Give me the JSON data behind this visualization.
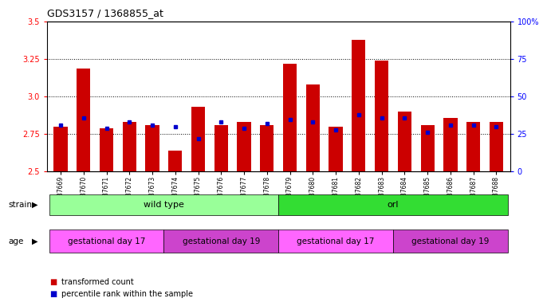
{
  "title": "GDS3157 / 1368855_at",
  "samples": [
    "GSM187669",
    "GSM187670",
    "GSM187671",
    "GSM187672",
    "GSM187673",
    "GSM187674",
    "GSM187675",
    "GSM187676",
    "GSM187677",
    "GSM187678",
    "GSM187679",
    "GSM187680",
    "GSM187681",
    "GSM187682",
    "GSM187683",
    "GSM187684",
    "GSM187685",
    "GSM187686",
    "GSM187687",
    "GSM187688"
  ],
  "transformed_count": [
    2.8,
    3.19,
    2.79,
    2.83,
    2.81,
    2.64,
    2.93,
    2.81,
    2.83,
    2.81,
    3.22,
    3.08,
    2.8,
    3.38,
    3.24,
    2.9,
    2.81,
    2.86,
    2.83,
    2.83
  ],
  "percentile_rank": [
    31,
    36,
    29,
    33,
    31,
    30,
    22,
    33,
    29,
    32,
    35,
    33,
    28,
    38,
    36,
    36,
    26,
    31,
    31,
    30
  ],
  "ylim_left": [
    2.5,
    3.5
  ],
  "ylim_right": [
    0,
    100
  ],
  "yticks_left": [
    2.5,
    2.75,
    3.0,
    3.25,
    3.5
  ],
  "yticks_right": [
    0,
    25,
    50,
    75,
    100
  ],
  "bar_color": "#cc0000",
  "dot_color": "#0000cc",
  "grid_values": [
    2.75,
    3.0,
    3.25
  ],
  "strain_groups": [
    {
      "label": "wild type",
      "start": 0,
      "end": 9,
      "color": "#99ff99"
    },
    {
      "label": "orl",
      "start": 10,
      "end": 19,
      "color": "#33dd33"
    }
  ],
  "age_groups": [
    {
      "label": "gestational day 17",
      "start": 0,
      "end": 4,
      "color": "#ff66ff"
    },
    {
      "label": "gestational day 19",
      "start": 5,
      "end": 9,
      "color": "#cc44cc"
    },
    {
      "label": "gestational day 17",
      "start": 10,
      "end": 14,
      "color": "#ff66ff"
    },
    {
      "label": "gestational day 19",
      "start": 15,
      "end": 19,
      "color": "#cc44cc"
    }
  ],
  "legend_items": [
    {
      "label": "transformed count",
      "color": "#cc0000"
    },
    {
      "label": "percentile rank within the sample",
      "color": "#0000cc"
    }
  ]
}
